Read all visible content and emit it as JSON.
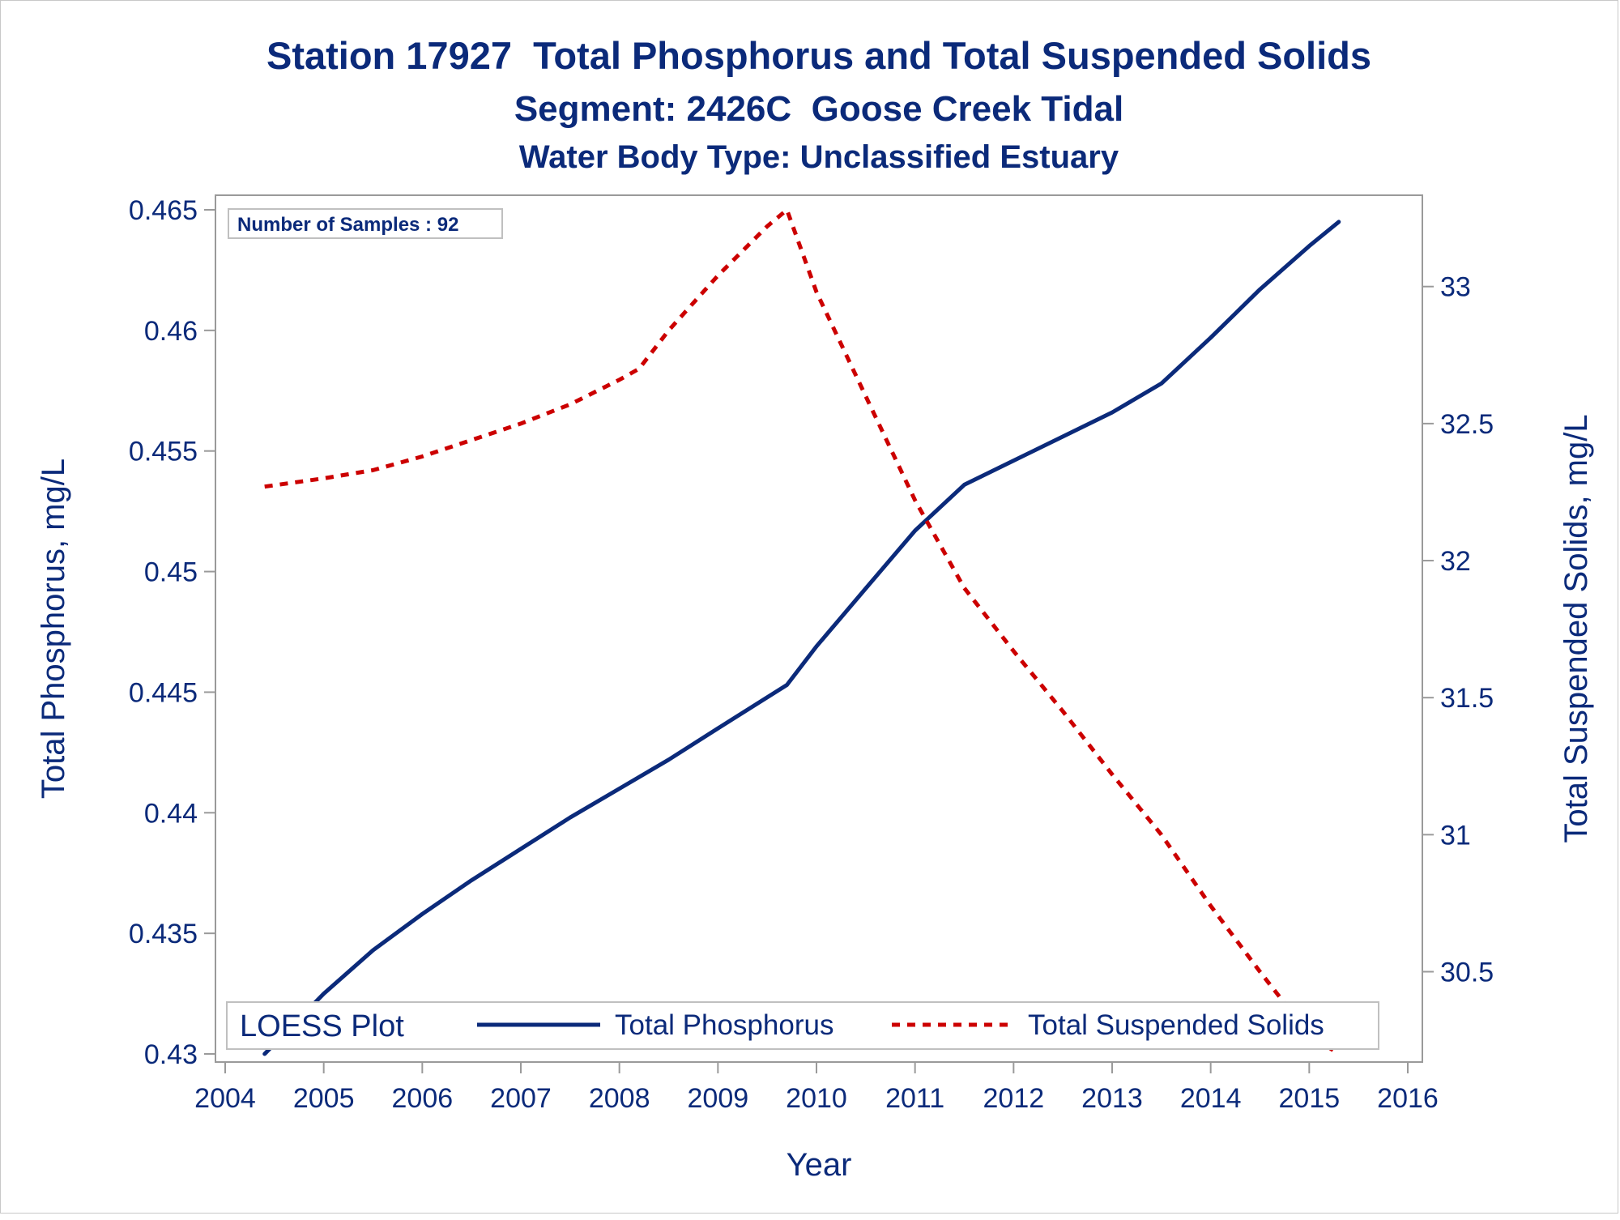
{
  "chart_data": {
    "type": "line",
    "title": "Station 17927  Total Phosphorus and Total Suspended Solids",
    "subtitle": "Segment: 2426C  Goose Creek Tidal",
    "subtitle2": "Water Body Type: Unclassified Estuary",
    "xlabel": "Year",
    "ylabel": "Total Phosphorus, mg/L",
    "y2label": "Total Suspended Solids, mg/L",
    "xlim": [
      2004,
      2016
    ],
    "ylim": [
      0.43,
      0.465
    ],
    "y2lim": [
      30.2,
      33.28
    ],
    "x_ticks": [
      "2004",
      "2005",
      "2006",
      "2007",
      "2008",
      "2009",
      "2010",
      "2011",
      "2012",
      "2013",
      "2014",
      "2015",
      "2016"
    ],
    "y_ticks": [
      "0.43",
      "0.435",
      "0.44",
      "0.445",
      "0.45",
      "0.455",
      "0.46",
      "0.465"
    ],
    "y2_ticks": [
      "30.5",
      "31",
      "31.5",
      "32",
      "32.5",
      "33"
    ],
    "annotation": "Number of Samples : 92",
    "legend": {
      "title": "LOESS Plot",
      "position": "bottom-inside",
      "items": [
        "Total Phosphorus",
        "Total Suspended Solids"
      ]
    },
    "series": [
      {
        "name": "Total Phosphorus",
        "axis": "left",
        "color": "#0b2a7a",
        "style": "solid",
        "x": [
          2004.4,
          2005.0,
          2005.5,
          2006.0,
          2006.5,
          2007.0,
          2007.5,
          2008.0,
          2008.5,
          2009.0,
          2009.7,
          2010.0,
          2010.5,
          2011.0,
          2011.5,
          2012.0,
          2012.5,
          2013.0,
          2013.5,
          2014.0,
          2014.5,
          2015.0,
          2015.3
        ],
        "y": [
          0.43,
          0.4325,
          0.4343,
          0.4358,
          0.4372,
          0.4385,
          0.4398,
          0.441,
          0.4422,
          0.4435,
          0.4453,
          0.4469,
          0.4493,
          0.4517,
          0.4536,
          0.4546,
          0.4556,
          0.4566,
          0.4578,
          0.4597,
          0.4617,
          0.4635,
          0.4645
        ]
      },
      {
        "name": "Total Suspended Solids",
        "axis": "right",
        "color": "#cc0000",
        "style": "dashed",
        "x": [
          2004.4,
          2005.0,
          2005.5,
          2006.0,
          2006.5,
          2007.0,
          2007.5,
          2008.0,
          2008.2,
          2008.5,
          2009.0,
          2009.5,
          2009.7,
          2010.0,
          2010.5,
          2011.0,
          2011.5,
          2012.0,
          2012.5,
          2013.0,
          2013.5,
          2014.0,
          2014.5,
          2015.0,
          2015.3
        ],
        "y": [
          32.27,
          32.3,
          32.33,
          32.38,
          32.44,
          32.5,
          32.57,
          32.66,
          32.7,
          32.84,
          33.04,
          33.22,
          33.28,
          32.98,
          32.6,
          32.22,
          31.9,
          31.67,
          31.45,
          31.22,
          31.0,
          30.74,
          30.5,
          30.27,
          30.2
        ]
      }
    ]
  }
}
